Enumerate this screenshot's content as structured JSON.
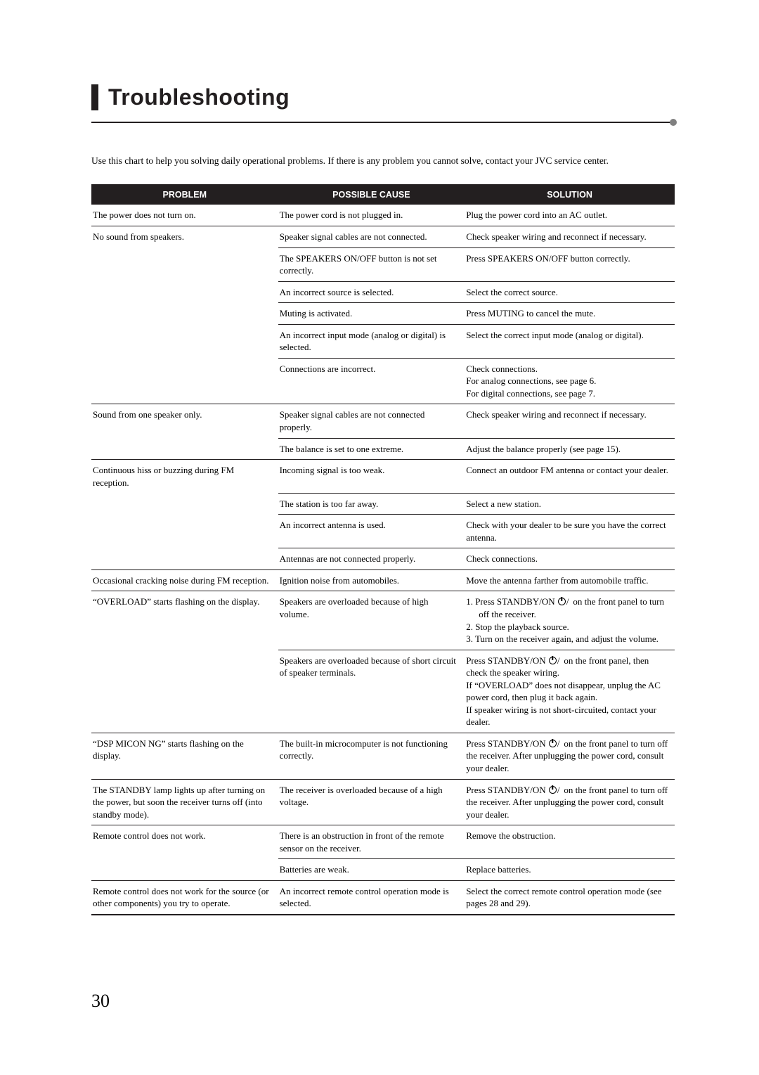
{
  "page": {
    "title": "Troubleshooting",
    "intro": "Use this chart to help you solving daily operational problems. If there is any problem you cannot solve, contact your JVC service center.",
    "page_number": "30"
  },
  "table": {
    "headers": {
      "problem": "PROBLEM",
      "cause": "POSSIBLE CAUSE",
      "solution": "SOLUTION"
    },
    "groups": [
      {
        "problem": "The power does not turn on.",
        "rows": [
          {
            "cause": "The power cord is not plugged in.",
            "solution": "Plug the power cord into an AC outlet."
          }
        ]
      },
      {
        "problem": "No sound from speakers.",
        "rows": [
          {
            "cause": "Speaker signal cables are not connected.",
            "solution": "Check speaker wiring and reconnect if necessary."
          },
          {
            "cause": "The SPEAKERS ON/OFF button is not set correctly.",
            "solution": "Press SPEAKERS ON/OFF button correctly."
          },
          {
            "cause": "An incorrect source is selected.",
            "solution": "Select the correct source."
          },
          {
            "cause": "Muting is activated.",
            "solution": "Press MUTING to cancel the mute."
          },
          {
            "cause": "An incorrect input mode (analog or digital) is selected.",
            "solution": "Select the correct input mode (analog or digital)."
          },
          {
            "cause": "Connections are incorrect.",
            "solution_lines": [
              "Check connections.",
              "For analog connections, see page 6.",
              "For digital connections, see page 7."
            ]
          }
        ]
      },
      {
        "problem": "Sound from one speaker only.",
        "rows": [
          {
            "cause": "Speaker signal cables are not connected properly.",
            "solution": "Check speaker wiring and reconnect if necessary."
          },
          {
            "cause": "The balance is set to one extreme.",
            "solution": "Adjust the balance properly (see page 15)."
          }
        ]
      },
      {
        "problem": "Continuous hiss or buzzing during FM reception.",
        "rows": [
          {
            "cause": "Incoming signal is too weak.",
            "solution": "Connect an outdoor FM antenna or contact your dealer."
          },
          {
            "cause": "The station is too far away.",
            "solution": "Select a new station."
          },
          {
            "cause": "An incorrect antenna is used.",
            "solution": "Check with your dealer to be sure you have the correct antenna."
          },
          {
            "cause": "Antennas are not connected properly.",
            "solution": "Check connections."
          }
        ]
      },
      {
        "problem": "Occasional cracking noise during FM reception.",
        "rows": [
          {
            "cause": "Ignition noise from automobiles.",
            "solution": "Move the antenna farther from automobile traffic."
          }
        ]
      },
      {
        "problem": "“OVERLOAD” starts flashing on the display.",
        "rows": [
          {
            "cause": "Speakers are overloaded because of high volume.",
            "solution_steps_prefix": "",
            "solution_step1_a": "1.  Press STANDBY/ON ",
            "solution_step1_b": " on the front panel to turn off the receiver.",
            "solution_step2": "2.  Stop the playback source.",
            "solution_step3": "3.  Turn on the receiver again, and adjust the volume."
          },
          {
            "cause": "Speakers are overloaded because of short circuit of speaker terminals.",
            "solution_prefix": "Press STANDBY/ON ",
            "solution_suffix": " on the front panel, then check the speaker wiring.\nIf “OVERLOAD” does not disappear, unplug the AC power cord, then plug it back again.\nIf speaker wiring is not short-circuited, contact your dealer."
          }
        ]
      },
      {
        "problem": "“DSP MICON NG” starts flashing on the display.",
        "rows": [
          {
            "cause": "The built-in microcomputer is not functioning correctly.",
            "solution_prefix": "Press STANDBY/ON ",
            "solution_suffix": " on the front panel to turn off the receiver. After unplugging the power cord, consult your dealer."
          }
        ]
      },
      {
        "problem": "The STANDBY lamp lights up after turning on the power, but soon the receiver turns off (into standby mode).",
        "rows": [
          {
            "cause": "The receiver is overloaded because of a high voltage.",
            "solution_prefix": "Press STANDBY/ON ",
            "solution_suffix": " on the front panel to turn off the receiver. After unplugging the power cord, consult your dealer."
          }
        ]
      },
      {
        "problem": "Remote control does not work.",
        "rows": [
          {
            "cause": "There is an obstruction in front of the remote sensor on the receiver.",
            "solution": "Remove the obstruction."
          },
          {
            "cause": "Batteries are weak.",
            "solution": "Replace batteries."
          }
        ]
      },
      {
        "problem": "Remote control does not work for the source (or other components) you try to operate.",
        "rows": [
          {
            "cause": "An incorrect remote control operation mode is selected.",
            "solution": "Select the correct remote control operation mode (see pages 28 and 29)."
          }
        ]
      }
    ]
  }
}
